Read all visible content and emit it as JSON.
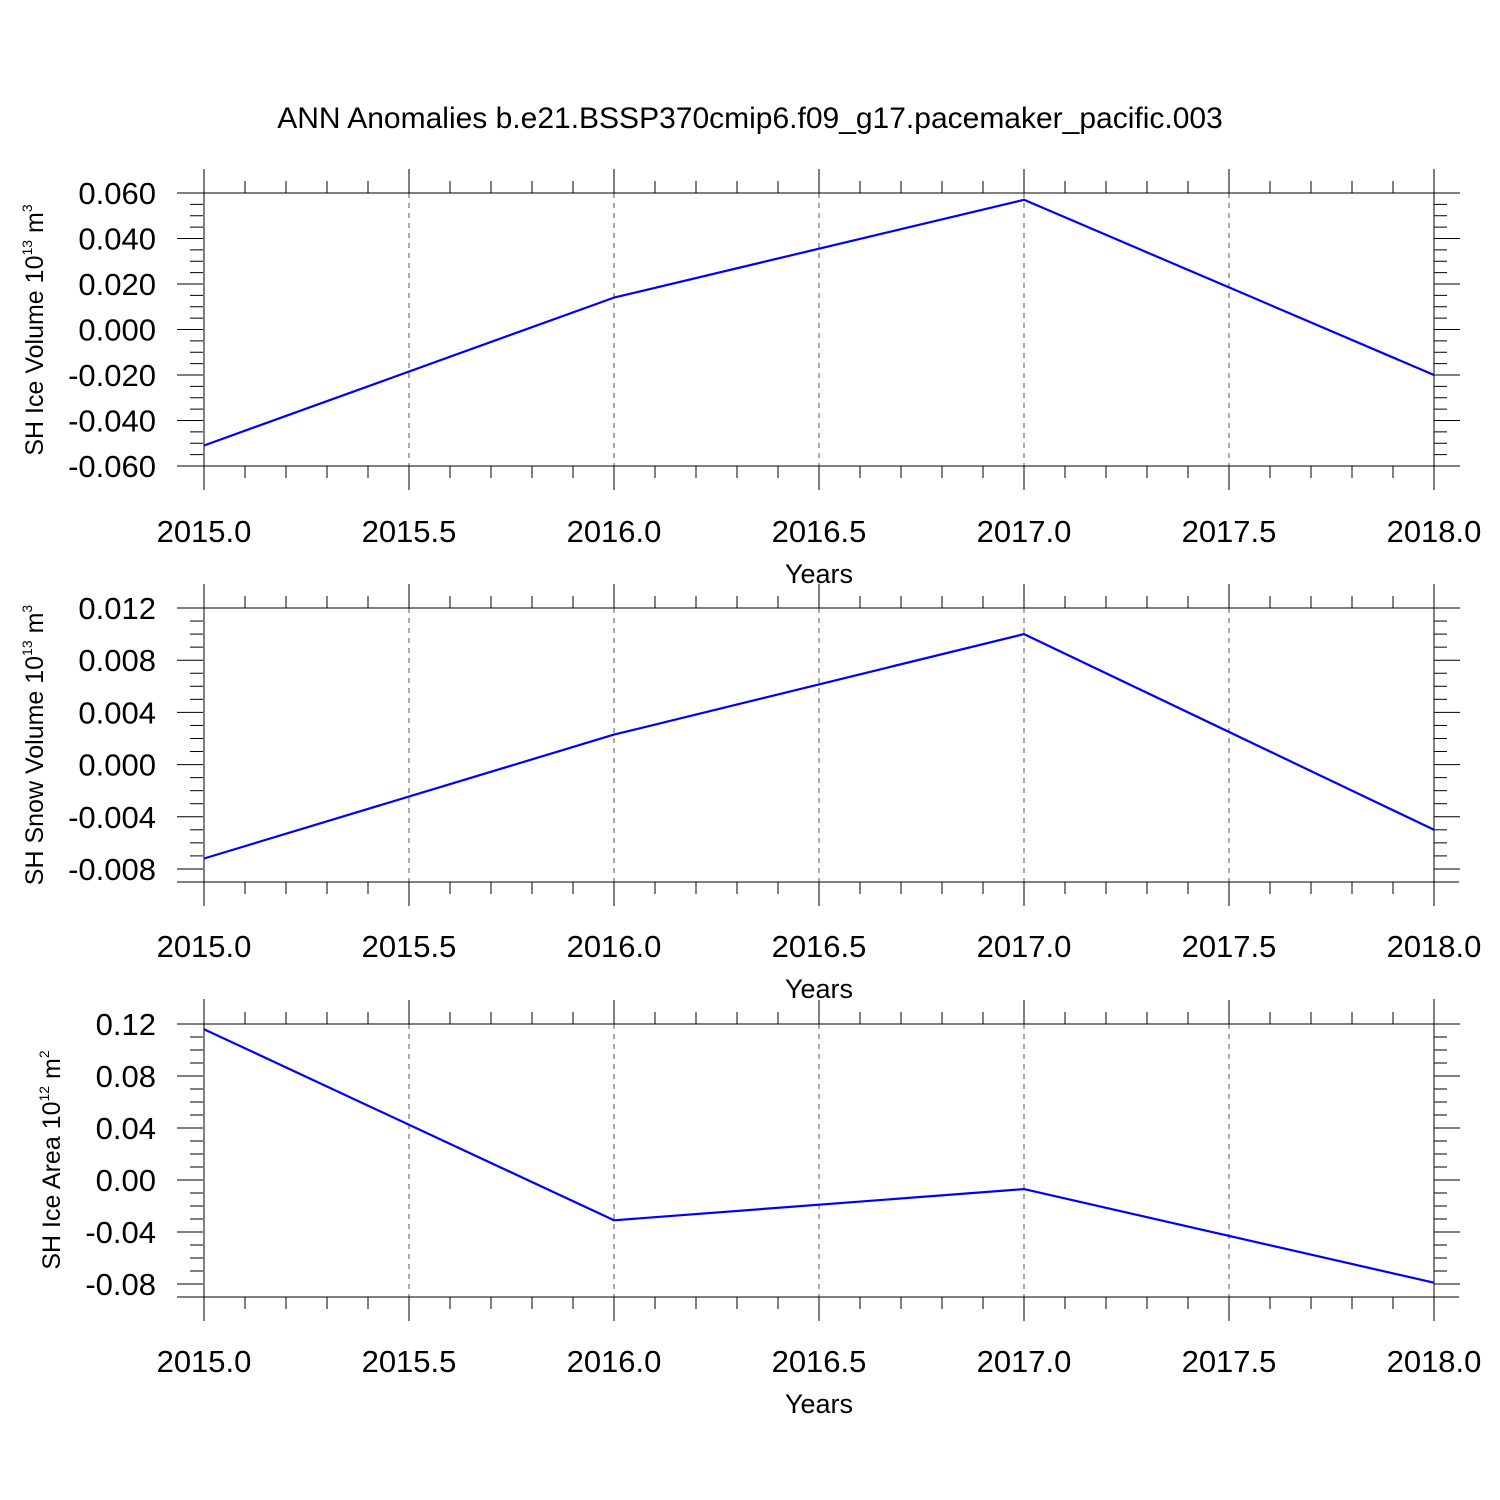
{
  "title": "ANN Anomalies b.e21.BSSP370cmip6.f09_g17.pacemaker_pacific.003",
  "colors": {
    "line": "#0000ff",
    "axis": "#000000",
    "grid": "#555555"
  },
  "chart_data": [
    {
      "type": "line",
      "ylabel": {
        "main": "SH Ice Volume 10",
        "exp": "13",
        "unit": " m",
        "unit_exp": "3"
      },
      "xlabel": "Years",
      "x": [
        2015,
        2016,
        2017,
        2018
      ],
      "series": [
        {
          "values": [
            -0.051,
            0.014,
            0.057,
            -0.02
          ]
        }
      ],
      "xlim": [
        2015.0,
        2018.0
      ],
      "ylim": [
        -0.06,
        0.06
      ],
      "xticks": [
        "2015.0",
        "2015.5",
        "2016.0",
        "2016.5",
        "2017.0",
        "2017.5",
        "2018.0"
      ],
      "yticks": [
        "0.060",
        "0.040",
        "0.020",
        "0.000",
        "-0.020",
        "-0.040",
        "-0.060"
      ],
      "ytick_values": [
        0.06,
        0.04,
        0.02,
        0.0,
        -0.02,
        -0.04,
        -0.06
      ],
      "grid": "vertical dashed"
    },
    {
      "type": "line",
      "ylabel": {
        "main": "SH Snow Volume 10",
        "exp": "13",
        "unit": " m",
        "unit_exp": "3"
      },
      "xlabel": "Years",
      "x": [
        2015,
        2016,
        2017,
        2018
      ],
      "series": [
        {
          "values": [
            -0.0072,
            0.0023,
            0.01,
            -0.005
          ]
        }
      ],
      "xlim": [
        2015.0,
        2018.0
      ],
      "ylim": [
        -0.009,
        0.012
      ],
      "xticks": [
        "2015.0",
        "2015.5",
        "2016.0",
        "2016.5",
        "2017.0",
        "2017.5",
        "2018.0"
      ],
      "yticks": [
        "0.012",
        "0.008",
        "0.004",
        "0.000",
        "-0.004",
        "-0.008"
      ],
      "ytick_values": [
        0.012,
        0.008,
        0.004,
        0.0,
        -0.004,
        -0.008
      ],
      "grid": "vertical dashed"
    },
    {
      "type": "line",
      "ylabel": {
        "main": "SH Ice Area 10",
        "exp": "12",
        "unit": " m",
        "unit_exp": "2"
      },
      "xlabel": "Years",
      "x": [
        2015,
        2016,
        2017,
        2018
      ],
      "series": [
        {
          "values": [
            0.116,
            -0.031,
            -0.007,
            -0.079
          ]
        }
      ],
      "xlim": [
        2015.0,
        2018.0
      ],
      "ylim": [
        -0.09,
        0.12
      ],
      "xticks": [
        "2015.0",
        "2015.5",
        "2016.0",
        "2016.5",
        "2017.0",
        "2017.5",
        "2018.0"
      ],
      "yticks": [
        "0.12",
        "0.08",
        "0.04",
        "0.00",
        "-0.04",
        "-0.08"
      ],
      "ytick_values": [
        0.12,
        0.08,
        0.04,
        0.0,
        -0.04,
        -0.08
      ],
      "grid": "vertical dashed"
    }
  ]
}
